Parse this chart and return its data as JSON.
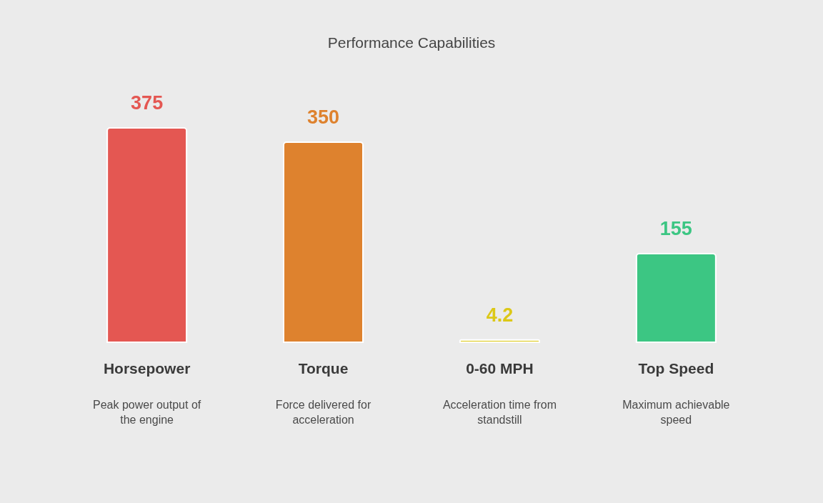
{
  "chart_data": {
    "type": "bar",
    "title": "Performance Capabilities",
    "categories": [
      "Horsepower",
      "Torque",
      "0-60 MPH",
      "Top Speed"
    ],
    "values": [
      375,
      350,
      4.2,
      155
    ],
    "colors": [
      "#e45752",
      "#de822e",
      "#dcc817",
      "#3cc683"
    ],
    "data_labels": true,
    "annotations": [
      "Peak power output of the engine",
      "Force delivered for acceleration",
      "Acceleration time from standstill",
      "Maximum achievable speed"
    ]
  }
}
